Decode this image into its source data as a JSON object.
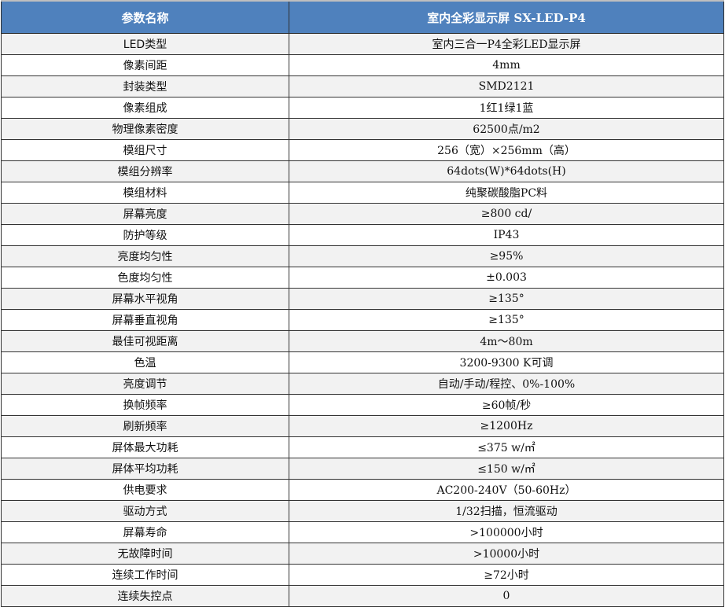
{
  "header": {
    "col1": "参数名称",
    "col2": "室内全彩显示屏 SX-LED-P4"
  },
  "rows": [
    {
      "name": "LED类型",
      "value": "室内三合一P4全彩LED显示屏"
    },
    {
      "name": "像素间距",
      "value": "4mm"
    },
    {
      "name": "封装类型",
      "value": "SMD2121"
    },
    {
      "name": "像素组成",
      "value": "1红1绿1蓝"
    },
    {
      "name": "物理像素密度",
      "value": "62500点/m2"
    },
    {
      "name": "模组尺寸",
      "value": "256（宽）×256mm（高）"
    },
    {
      "name": "模组分辨率",
      "value": "64dots(W)*64dots(H)"
    },
    {
      "name": "模组材料",
      "value": "纯聚碳酸脂PC料"
    },
    {
      "name": "屏幕亮度",
      "value": "≥800 cd/"
    },
    {
      "name": "防护等级",
      "value": "IP43"
    },
    {
      "name": "亮度均匀性",
      "value": "≥95%"
    },
    {
      "name": "色度均匀性",
      "value": "±0.003"
    },
    {
      "name": "屏幕水平视角",
      "value": "≥135°"
    },
    {
      "name": "屏幕垂直视角",
      "value": "≥135°"
    },
    {
      "name": "最佳可视距离",
      "value": "4m～80m"
    },
    {
      "name": "色温",
      "value": "3200-9300 K可调"
    },
    {
      "name": "亮度调节",
      "value": "自动/手动/程控、0%-100%"
    },
    {
      "name": "换帧频率",
      "value": "≥60帧/秒"
    },
    {
      "name": "刷新频率",
      "value": "≥1200Hz"
    },
    {
      "name": "屏体最大功耗",
      "value": "≤375 w/㎡"
    },
    {
      "name": "屏体平均功耗",
      "value": "≤150 w/㎡"
    },
    {
      "name": "供电要求",
      "value": "AC200-240V（50-60Hz）"
    },
    {
      "name": "驱动方式",
      "value": "1/32扫描，恒流驱动"
    },
    {
      "name": "屏幕寿命",
      "value": ">100000小时"
    },
    {
      "name": "无故障时间",
      "value": ">10000小时"
    },
    {
      "name": "连续工作时间",
      "value": "≥72小时"
    },
    {
      "name": "连续失控点",
      "value": "0"
    }
  ]
}
